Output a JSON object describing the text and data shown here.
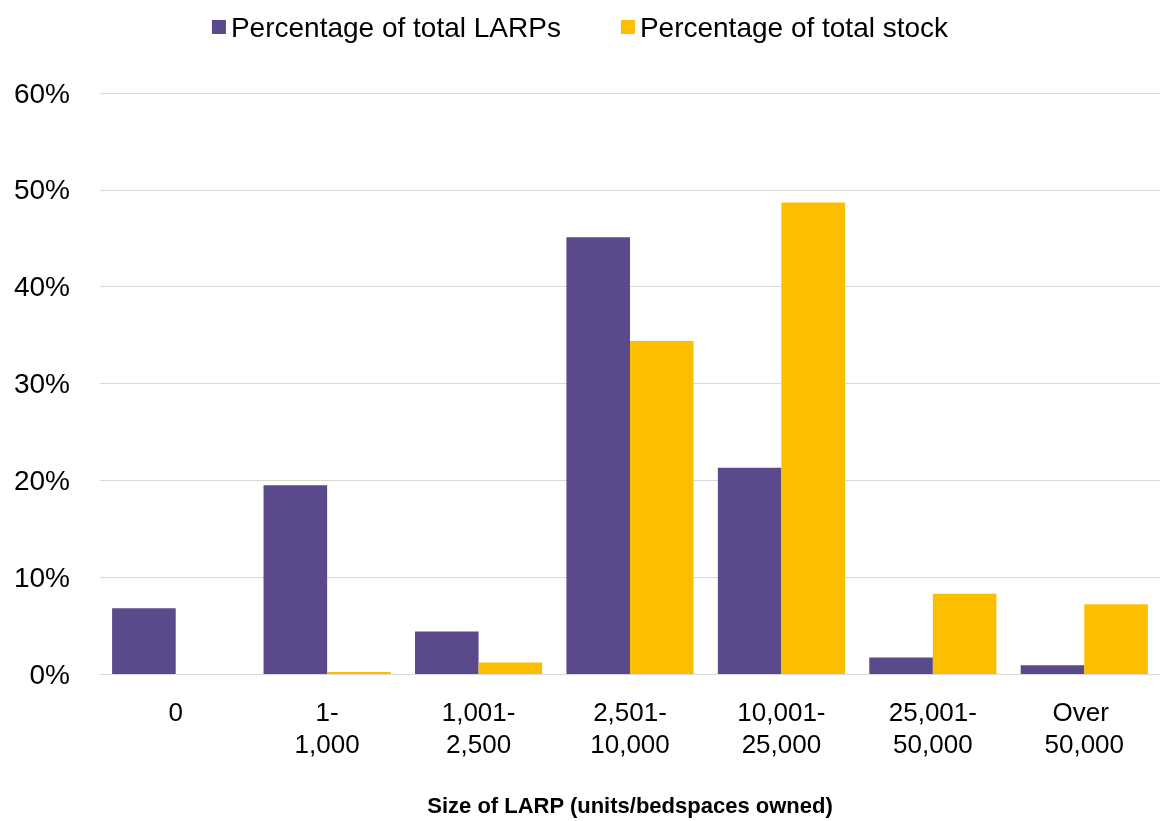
{
  "chart_data": {
    "type": "bar",
    "xlabel": "Size of LARP (units/bedspaces owned)",
    "categories": [
      "0",
      "1-1,000",
      "1,001-2,500",
      "2,501-10,000",
      "10,001-25,000",
      "25,001-50,000",
      "Over 50,000"
    ],
    "series": [
      {
        "name": "Percentage of total LARPs",
        "color": "#5b4a8b",
        "values": [
          6.8,
          19.5,
          4.4,
          45.1,
          21.3,
          1.7,
          0.9
        ]
      },
      {
        "name": "Percentage of total stock",
        "color": "#fbbf00",
        "values": [
          0,
          0.2,
          1.2,
          34.4,
          48.7,
          8.3,
          7.2
        ]
      }
    ],
    "ylim": [
      0,
      60
    ],
    "yticks": [
      {
        "value": 0,
        "label": "0%"
      },
      {
        "value": 10,
        "label": "10%"
      },
      {
        "value": 20,
        "label": "20%"
      },
      {
        "value": 30,
        "label": "30%"
      },
      {
        "value": 40,
        "label": "40%"
      },
      {
        "value": 50,
        "label": "50%"
      },
      {
        "value": 60,
        "label": "60%"
      }
    ],
    "grid": "y",
    "legend": "top"
  }
}
